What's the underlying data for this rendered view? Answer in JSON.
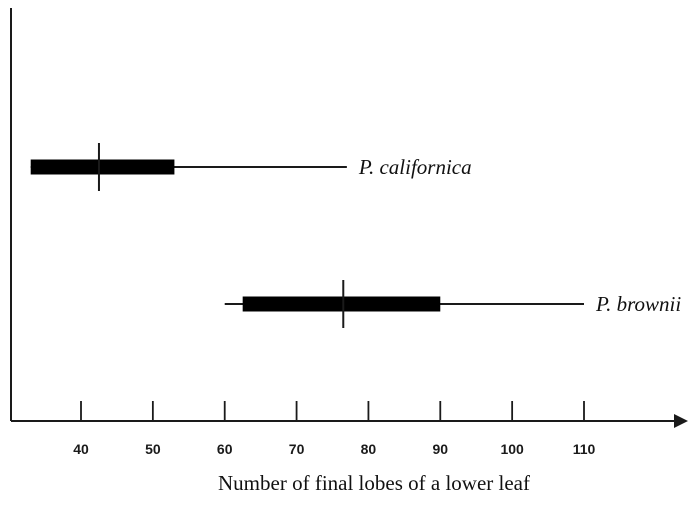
{
  "chart_data": {
    "type": "boxplot",
    "title": "",
    "xlabel": "Number of final lobes of a lower leaf",
    "ylabel": "",
    "xlim": [
      30,
      122
    ],
    "x_ticks": [
      40,
      50,
      60,
      70,
      80,
      90,
      100,
      110
    ],
    "grid": false,
    "legend": "none",
    "series": [
      {
        "name": "P. californica",
        "min": 33,
        "q1": 33,
        "median": 42.5,
        "q3": 53,
        "max": 77
      },
      {
        "name": "P. brownii",
        "min": 60,
        "q1": 62.5,
        "median": 76.5,
        "q3": 90,
        "max": 110
      }
    ]
  }
}
